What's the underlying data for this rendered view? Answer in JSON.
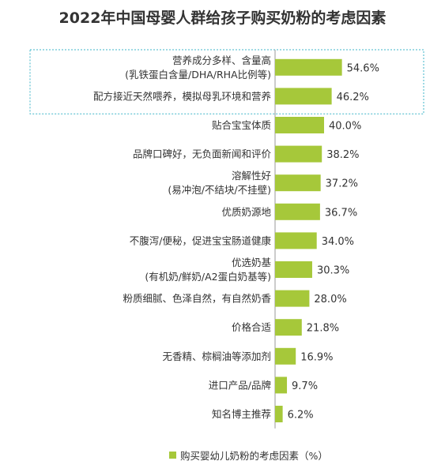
{
  "chart_data": {
    "type": "bar",
    "orientation": "horizontal",
    "title": "2022年中国母婴人群给孩子购买奶粉的考虑因素",
    "categories": [
      [
        "营养成分多样、含量高",
        "(乳铁蛋白含量/DHA/RHA比例等)"
      ],
      [
        "配方接近天然喂养，模拟母乳环境和营养"
      ],
      [
        "贴合宝宝体质"
      ],
      [
        "品牌口碑好，无负面新闻和评价"
      ],
      [
        "溶解性好",
        "(易冲泡/不结块/不挂壁)"
      ],
      [
        "优质奶源地"
      ],
      [
        "不腹泻/便秘，促进宝宝肠道健康"
      ],
      [
        "优选奶基",
        "(有机奶/鲜奶/A2蛋白奶基等)"
      ],
      [
        "粉质细腻、色泽自然，有自然奶香"
      ],
      [
        "价格合适"
      ],
      [
        "无香精、棕榈油等添加剂"
      ],
      [
        "进口产品/品牌"
      ],
      [
        "知名博主推荐"
      ]
    ],
    "series": [
      {
        "name": "购买婴幼儿奶粉的考虑因素（%）",
        "values": [
          54.6,
          46.2,
          40.0,
          38.2,
          37.2,
          36.7,
          34.0,
          30.3,
          28.0,
          21.8,
          16.9,
          9.7,
          6.2
        ],
        "labels": [
          "54.6%",
          "46.2%",
          "40.0%",
          "38.2%",
          "37.2%",
          "36.7%",
          "34.0%",
          "30.3%",
          "28.0%",
          "21.8%",
          "16.9%",
          "9.7%",
          "6.2%"
        ]
      }
    ],
    "highlighted_categories": [
      0,
      1
    ],
    "legend_position": "bottom",
    "grid": false
  },
  "colors": {
    "bar": "#a6c83a",
    "axis": "#999999",
    "text": "#333333",
    "highlight_border": "#3fb6c8"
  }
}
